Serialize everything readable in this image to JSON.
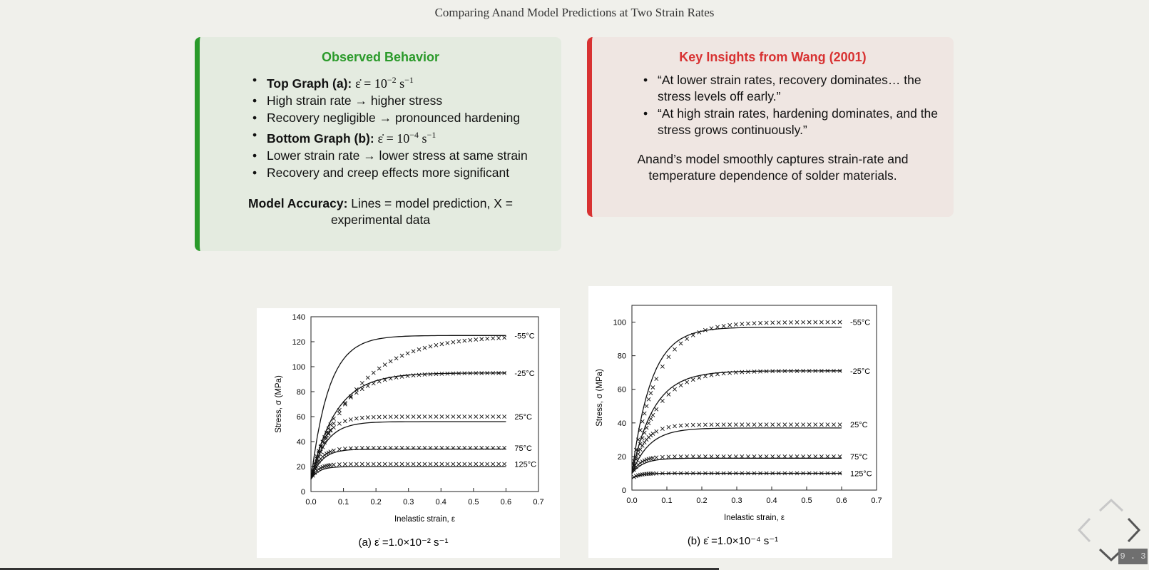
{
  "slide": {
    "title": "Comparing Anand Model Predictions at Two Strain Rates",
    "number": "9 . 3",
    "progress": 0.626
  },
  "observed": {
    "heading": "Observed Behavior",
    "items": [
      {
        "bold": "Top Graph (a):",
        "math_base": "ε̇ = 10",
        "math_exp": "−2",
        "math_unit": " s",
        "math_unit_exp": "−1"
      },
      {
        "text": "High strain rate → higher stress"
      },
      {
        "text": "Recovery negligible → pronounced hardening"
      },
      {
        "bold": "Bottom Graph (b):",
        "math_base": "ε̇ = 10",
        "math_exp": "−4",
        "math_unit": " s",
        "math_unit_exp": "−1"
      },
      {
        "text": "Lower strain rate → lower stress at same strain"
      },
      {
        "text": "Recovery and creep effects more significant"
      }
    ],
    "note_bold": "Model Accuracy:",
    "note_text": " Lines = model prediction, X = experimental data"
  },
  "insights": {
    "heading": "Key Insights from Wang (2001)",
    "items": [
      "“At lower strain rates, recovery dominates… the stress levels off early.”",
      "“At high strain rates, hardening dominates, and the stress grows continuously.”"
    ],
    "note": "Anand’s model smoothly captures strain-rate and temperature dependence of solder materials."
  },
  "colors": {
    "green": "#2a9a2a",
    "red": "#d83232"
  },
  "chart_data": [
    {
      "type": "line",
      "caption": "(a)  ε̇ =1.0×10⁻² s⁻¹",
      "xlabel": "Inelastic strain, ε",
      "ylabel": "Stress, σ (MPa)",
      "xlim": [
        0,
        0.7
      ],
      "ylim": [
        0,
        140
      ],
      "xticks": [
        "0.0",
        "0.1",
        "0.2",
        "0.3",
        "0.4",
        "0.5",
        "0.6",
        "0.7"
      ],
      "yticks": [
        "0",
        "20",
        "40",
        "60",
        "80",
        "100",
        "120",
        "140"
      ],
      "series": [
        {
          "name": "-55°C",
          "model": 125,
          "exp": 125,
          "y0": 10,
          "k_model": 18,
          "k_exp": 7
        },
        {
          "name": "-25°C",
          "model": 95,
          "exp": 95,
          "y0": 10,
          "k_model": 13,
          "k_exp": 12
        },
        {
          "name": "25°C",
          "model": 56,
          "exp": 60,
          "y0": 10,
          "k_model": 22,
          "k_exp": 25
        },
        {
          "name": "75°C",
          "model": 34,
          "exp": 35,
          "y0": 10,
          "k_model": 30,
          "k_exp": 35
        },
        {
          "name": "125°C",
          "model": 20,
          "exp": 22,
          "y0": 10,
          "k_model": 40,
          "k_exp": 45
        }
      ]
    },
    {
      "type": "line",
      "caption": "(b)  ε̇ =1.0×10⁻⁴ s⁻¹",
      "xlabel": "Inelastic strain, ε",
      "ylabel": "Stress, σ (MPa)",
      "xlim": [
        0,
        0.7
      ],
      "ylim": [
        0,
        110
      ],
      "xticks": [
        "0.0",
        "0.1",
        "0.2",
        "0.3",
        "0.4",
        "0.5",
        "0.6",
        "0.7"
      ],
      "yticks": [
        "0",
        "20",
        "40",
        "60",
        "80",
        "100"
      ],
      "series": [
        {
          "name": "-55°C",
          "model": 97,
          "exp": 100,
          "y0": 10,
          "k_model": 18,
          "k_exp": 14
        },
        {
          "name": "-25°C",
          "model": 71,
          "exp": 71,
          "y0": 10,
          "k_model": 16,
          "k_exp": 14
        },
        {
          "name": "25°C",
          "model": 37,
          "exp": 39,
          "y0": 10,
          "k_model": 20,
          "k_exp": 28
        },
        {
          "name": "75°C",
          "model": 19,
          "exp": 20,
          "y0": 10,
          "k_model": 30,
          "k_exp": 40
        },
        {
          "name": "125°C",
          "model": 10,
          "exp": 10,
          "y0": 7,
          "k_model": 40,
          "k_exp": 50
        }
      ]
    }
  ]
}
